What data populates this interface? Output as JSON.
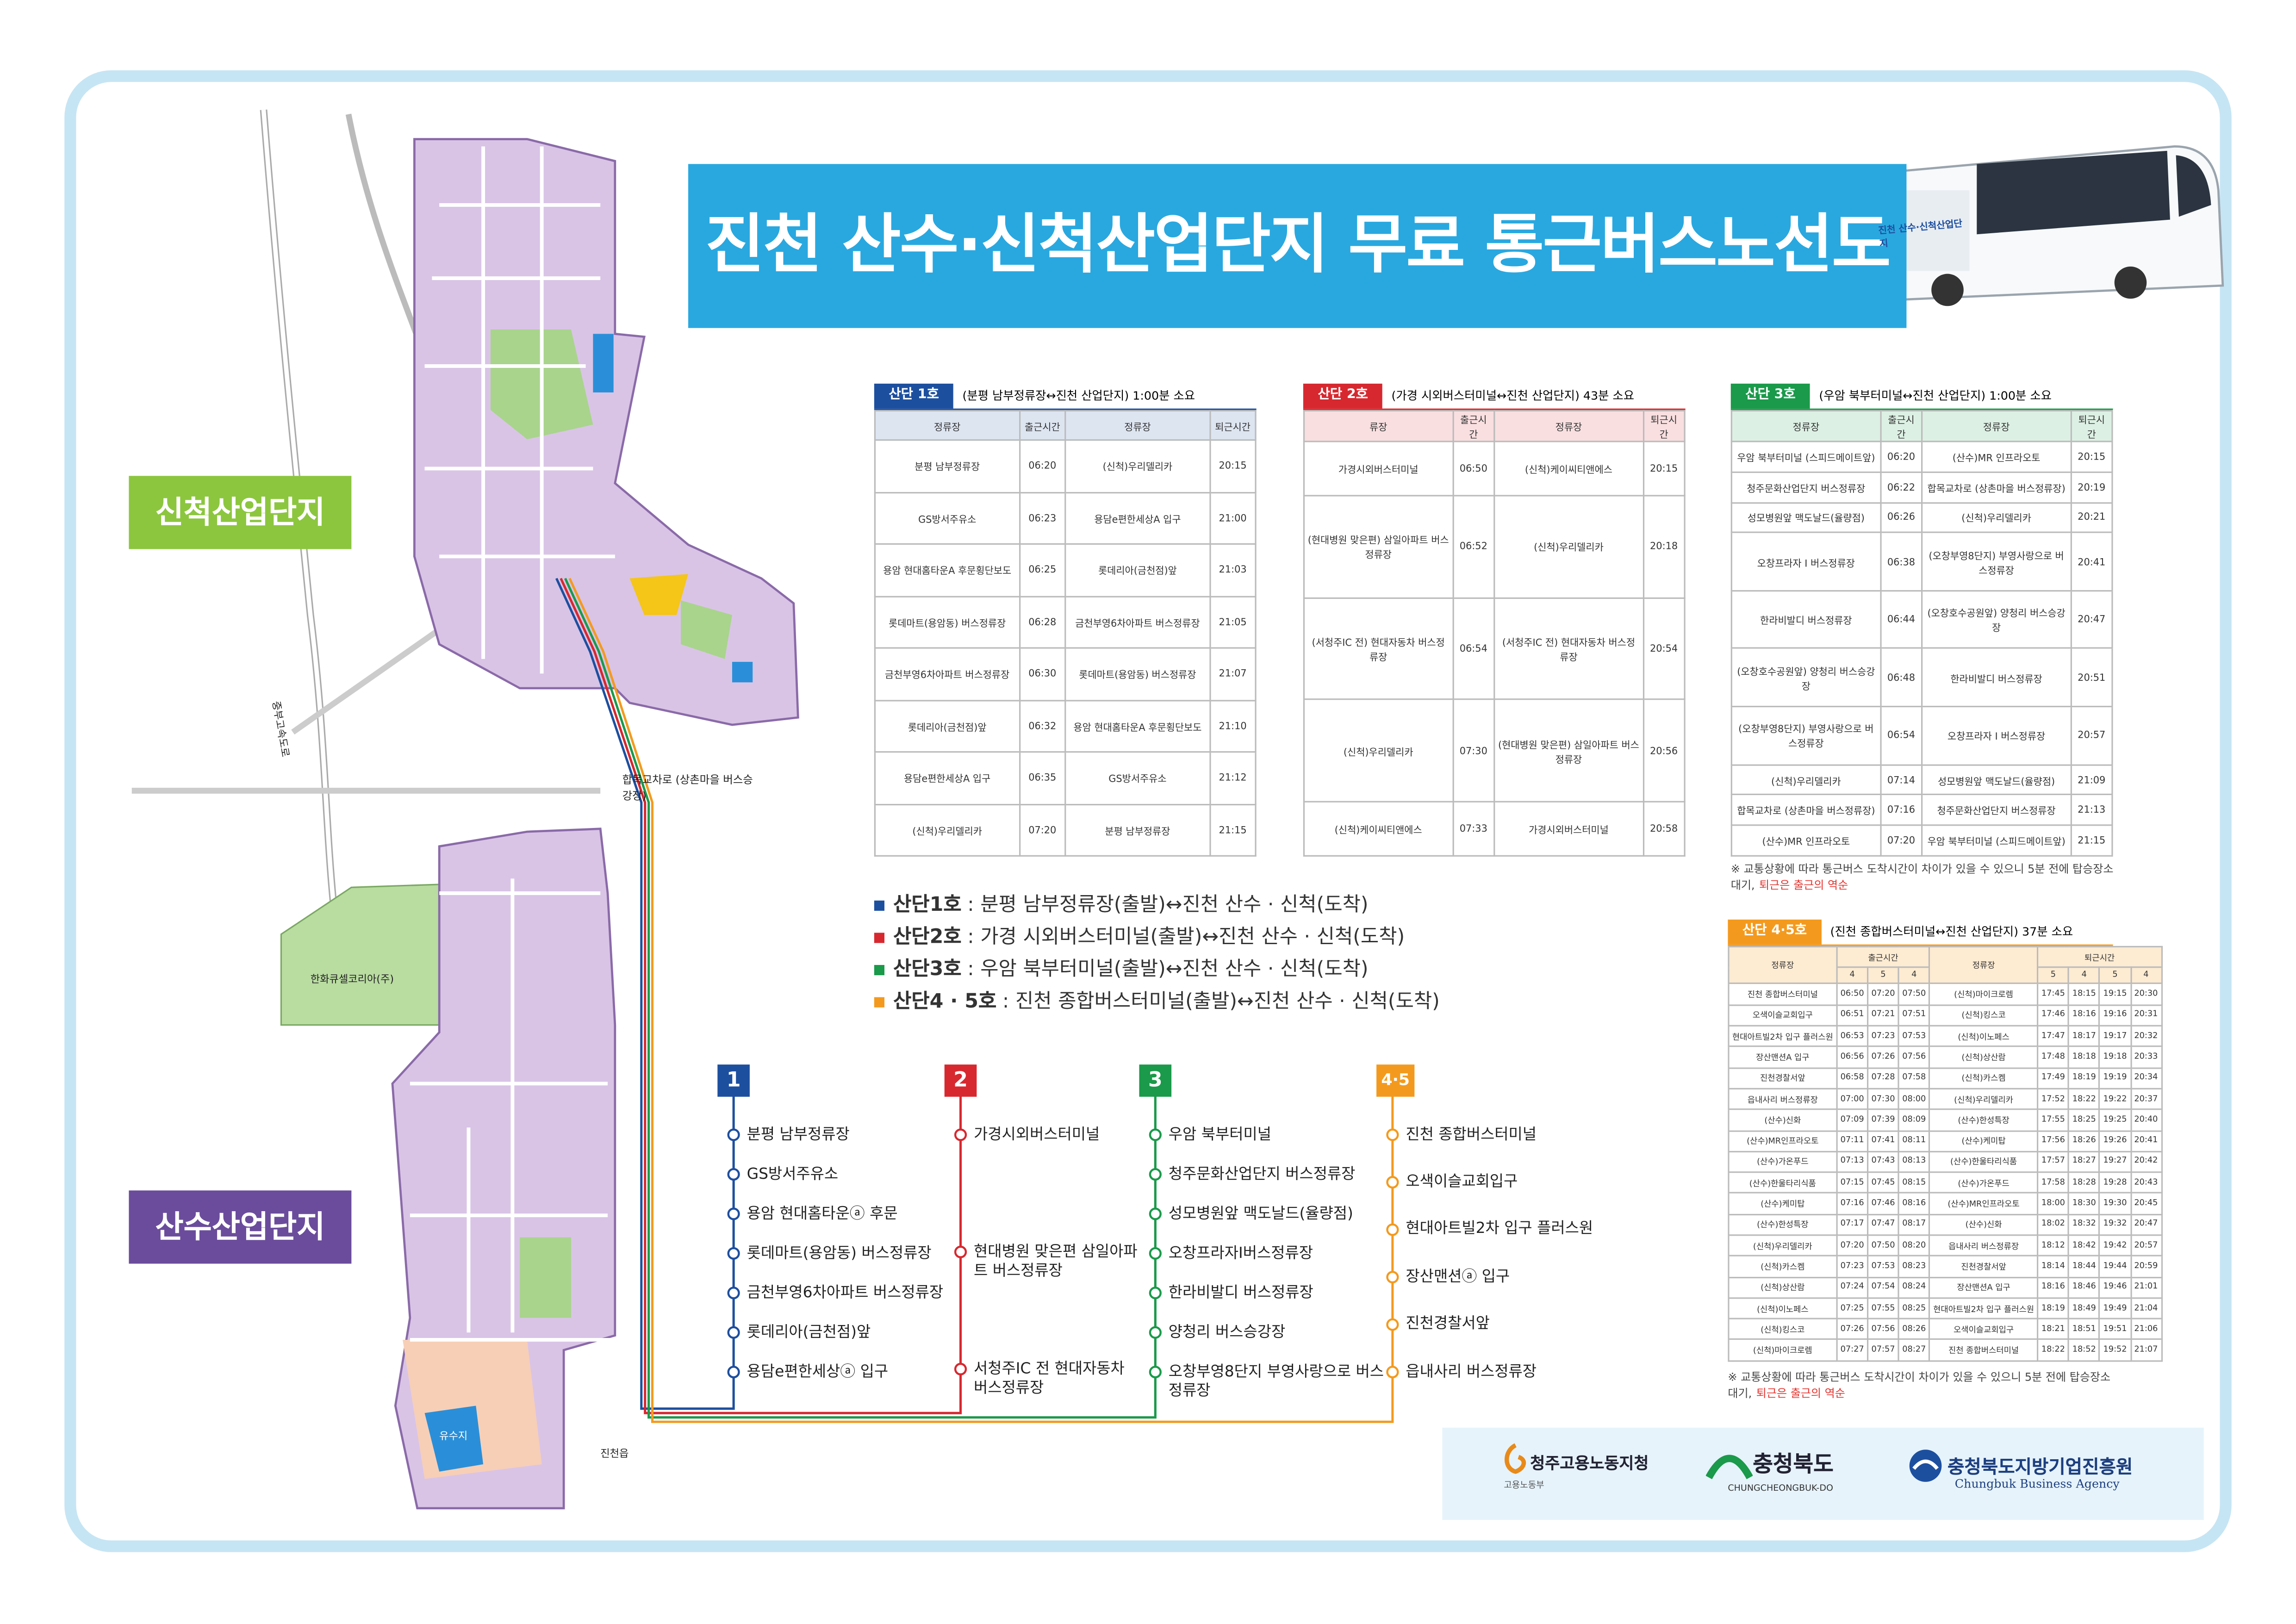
{
  "title": "진천 산수·신척산업단지 무료 통근버스노선도",
  "bus_label": "진천 산수·신척산업단지",
  "map": {
    "zones": [
      "신척산업단지",
      "산수산업단지"
    ],
    "labels": [
      "합목교차로 (상촌마을 버스승강장)",
      "중부고속도로",
      "진천읍"
    ],
    "places": [
      "한화큐셀코리아(주)",
      "유수지"
    ]
  },
  "routes": [
    {
      "number": "1",
      "color": "#1d4f9f",
      "stops": [
        "분평 남부정류장",
        "GS방서주유소",
        "용암 현대홈타운ⓐ 후문",
        "롯데마트(용암동) 버스정류장",
        "금천부영6차아파트 버스정류장",
        "롯데리아(금천점)앞",
        "용담e편한세상ⓐ 입구"
      ]
    },
    {
      "number": "2",
      "color": "#d7282f",
      "stops": [
        "가경시외버스터미널",
        "현대병원 맞은편 삼일아파트 버스정류장",
        "서청주IC 전 현대자동차 버스정류장"
      ]
    },
    {
      "number": "3",
      "color": "#1a9a4a",
      "stops": [
        "우암 북부터미널",
        "청주문화산업단지 버스정류장",
        "성모병원앞 맥도날드(율량점)",
        "오창프라자Ⅰ버스정류장",
        "한라비발디 버스정류장",
        "양청리 버스승강장",
        "오창부영8단지 부영사랑으로 버스정류장"
      ]
    },
    {
      "number": "4·5",
      "color": "#f39a1e",
      "stops": [
        "진천 종합버스터미널",
        "오색이슬교회입구",
        "현대아트빌2차 입구 플러스원",
        "장산맨션ⓐ 입구",
        "진천경찰서앞",
        "읍내사리 버스정류장"
      ]
    }
  ],
  "legend": [
    {
      "label": "산단1호",
      "text": ": 분평 남부정류장(출발)↔진천 산수 · 신척(도착)"
    },
    {
      "label": "산단2호",
      "text": ": 가경 시외버스터미널(출발)↔진천 산수 · 신척(도착)"
    },
    {
      "label": "산단3호",
      "text": ": 우암 북부터미널(출발)↔진천 산수 · 신척(도착)"
    },
    {
      "label": "산단4 · 5호",
      "text": ": 진천 종합버스터미널(출발)↔진천 산수 · 신척(도착)"
    }
  ],
  "tables": [
    {
      "badge": "산단 1호",
      "desc": "(분평 남부정류장↔진천 산업단지) 1:00분 소요",
      "columns": [
        "정류장",
        "출근시간",
        "정류장",
        "퇴근시간"
      ],
      "rows": [
        [
          "분평 남부정류장",
          "06:20",
          "(신척)우리델리카",
          "20:15"
        ],
        [
          "GS방서주유소",
          "06:23",
          "용담e편한세상A 입구",
          "21:00"
        ],
        [
          "용암 현대홈타운A 후문횡단보도",
          "06:25",
          "롯데리아(금천점)앞",
          "21:03"
        ],
        [
          "롯데마트(용암동) 버스정류장",
          "06:28",
          "금천부영6차아파트 버스정류장",
          "21:05"
        ],
        [
          "금천부영6차아파트 버스정류장",
          "06:30",
          "롯데마트(용암동) 버스정류장",
          "21:07"
        ],
        [
          "롯데리아(금천점)앞",
          "06:32",
          "용암 현대홈타운A 후문횡단보도",
          "21:10"
        ],
        [
          "용담e편한세상A 입구",
          "06:35",
          "GS방서주유소",
          "21:12"
        ],
        [
          "(신척)우리델리카",
          "07:20",
          "분평 남부정류장",
          "21:15"
        ]
      ]
    },
    {
      "badge": "산단 2호",
      "desc": "(가경 시외버스터미널↔진천 산업단지) 43분 소요",
      "columns": [
        "류장",
        "출근시간",
        "정류장",
        "퇴근시간"
      ],
      "rows": [
        [
          "가경시외버스터미널",
          "06:50",
          "(신척)케이씨티앤에스",
          "20:15"
        ],
        [
          "(현대병원 맞은편) 삼일아파트 버스정류장",
          "06:52",
          "(신척)우리델리카",
          "20:18"
        ],
        [
          "(서청주IC 전) 현대자동차 버스정류장",
          "06:54",
          "(서청주IC 전) 현대자동차 버스정류장",
          "20:54"
        ],
        [
          "(신척)우리델리카",
          "07:30",
          "(현대병원 맞은편) 삼일아파트 버스정류장",
          "20:56"
        ],
        [
          "(신척)케이씨티앤에스",
          "07:33",
          "가경시외버스터미널",
          "20:58"
        ]
      ]
    },
    {
      "badge": "산단 3호",
      "desc": "(우암 북부터미널↔진천 산업단지) 1:00분 소요",
      "columns": [
        "정류장",
        "출근시간",
        "정류장",
        "퇴근시간"
      ],
      "rows": [
        [
          "우암 북부터미널 (스피드메이트앞)",
          "06:20",
          "(산수)MR 인프라오토",
          "20:15"
        ],
        [
          "청주문화산업단지 버스정류장",
          "06:22",
          "합목교차로 (상촌마을 버스정류장)",
          "20:19"
        ],
        [
          "성모병원앞 맥도날드(율량점)",
          "06:26",
          "(신척)우리델리카",
          "20:21"
        ],
        [
          "오창프라자 I 버스정류장",
          "06:38",
          "(오창부영8단지) 부영사랑으로 버스정류장",
          "20:41"
        ],
        [
          "한라비발디 버스정류장",
          "06:44",
          "(오창호수공원앞) 양청리 버스승강장",
          "20:47"
        ],
        [
          "(오창호수공원앞) 양청리 버스승강장",
          "06:48",
          "한라비발디 버스정류장",
          "20:51"
        ],
        [
          "(오창부영8단지) 부영사랑으로 버스정류장",
          "06:54",
          "오창프라자 I 버스정류장",
          "20:57"
        ],
        [
          "(신척)우리델리카",
          "07:14",
          "성모병원앞 맥도날드(율량점)",
          "21:09"
        ],
        [
          "합목교차로 (상촌마을 버스정류장)",
          "07:16",
          "청주문화산업단지 버스정류장",
          "21:13"
        ],
        [
          "(산수)MR 인프라오토",
          "07:20",
          "우암 북부터미널 (스피드메이트앞)",
          "21:15"
        ]
      ]
    }
  ],
  "table45": {
    "badge": "산단 4·5호",
    "desc": "(진천 종합버스터미널↔진천 산업단지) 37분 소요",
    "columns": [
      "정류장",
      "출근시간",
      "정류장",
      "퇴근시간"
    ],
    "sub_in": [
      "4",
      "5",
      "4"
    ],
    "sub_out": [
      "5",
      "4",
      "5",
      "4"
    ],
    "rows": [
      [
        "진천 종합버스터미널",
        "06:50",
        "07:20",
        "07:50",
        "(신척)마이크로렘",
        "17:45",
        "18:15",
        "19:15",
        "20:30"
      ],
      [
        "오색이슬교회입구",
        "06:51",
        "07:21",
        "07:51",
        "(신척)킹스코",
        "17:46",
        "18:16",
        "19:16",
        "20:31"
      ],
      [
        "현대아트빌2차 입구 플러스원",
        "06:53",
        "07:23",
        "07:53",
        "(신척)이노페스",
        "17:47",
        "18:17",
        "19:17",
        "20:32"
      ],
      [
        "장산맨션A 입구",
        "06:56",
        "07:26",
        "07:56",
        "(신척)상산람",
        "17:48",
        "18:18",
        "19:18",
        "20:33"
      ],
      [
        "진천경찰서앞",
        "06:58",
        "07:28",
        "07:58",
        "(신척)카스켐",
        "17:49",
        "18:19",
        "19:19",
        "20:34"
      ],
      [
        "읍내사리 버스정류장",
        "07:00",
        "07:30",
        "08:00",
        "(신척)우리델리카",
        "17:52",
        "18:22",
        "19:22",
        "20:37"
      ],
      [
        "(산수)신화",
        "07:09",
        "07:39",
        "08:09",
        "(산수)한성특장",
        "17:55",
        "18:25",
        "19:25",
        "20:40"
      ],
      [
        "(산수)MR인프라오토",
        "07:11",
        "07:41",
        "08:11",
        "(산수)케미탑",
        "17:56",
        "18:26",
        "19:26",
        "20:41"
      ],
      [
        "(산수)가온푸드",
        "07:13",
        "07:43",
        "08:13",
        "(산수)한울타리식품",
        "17:57",
        "18:27",
        "19:27",
        "20:42"
      ],
      [
        "(산수)한울타리식품",
        "07:15",
        "07:45",
        "08:15",
        "(산수)가온푸드",
        "17:58",
        "18:28",
        "19:28",
        "20:43"
      ],
      [
        "(산수)케미탑",
        "07:16",
        "07:46",
        "08:16",
        "(산수)MR인프라오토",
        "18:00",
        "18:30",
        "19:30",
        "20:45"
      ],
      [
        "(산수)한성특장",
        "07:17",
        "07:47",
        "08:17",
        "(산수)신화",
        "18:02",
        "18:32",
        "19:32",
        "20:47"
      ],
      [
        "(신척)우리델리카",
        "07:20",
        "07:50",
        "08:20",
        "읍내사리 버스정류장",
        "18:12",
        "18:42",
        "19:42",
        "20:57"
      ],
      [
        "(신척)카스켐",
        "07:23",
        "07:53",
        "08:23",
        "진천경찰서앞",
        "18:14",
        "18:44",
        "19:44",
        "20:59"
      ],
      [
        "(신척)상산람",
        "07:24",
        "07:54",
        "08:24",
        "장산맨션A 입구",
        "18:16",
        "18:46",
        "19:46",
        "21:01"
      ],
      [
        "(신척)이노페스",
        "07:25",
        "07:55",
        "08:25",
        "현대아트빌2차 입구 플러스원",
        "18:19",
        "18:49",
        "19:49",
        "21:04"
      ],
      [
        "(신척)킹스코",
        "07:26",
        "07:56",
        "08:26",
        "오색이슬교회입구",
        "18:21",
        "18:51",
        "19:51",
        "21:06"
      ],
      [
        "(신척)마이크로렘",
        "07:27",
        "07:57",
        "08:27",
        "진천 종합버스터미널",
        "18:22",
        "18:52",
        "19:52",
        "21:07"
      ]
    ]
  },
  "note": {
    "text": "※ 교통상황에 따라 통근버스 도착시간이 차이가 있을 수 있으니 5분 전에 탑승장소 대기,",
    "highlight": "퇴근은 출근의 역순"
  },
  "logos": [
    {
      "name": "청주고용노동지청",
      "sub": "고용노동부"
    },
    {
      "name": "충청북도",
      "sub": "CHUNGCHEONGBUK-DO"
    },
    {
      "name": "충청북도지방기업진흥원",
      "sub": "Chungbuk Business Agency"
    }
  ]
}
